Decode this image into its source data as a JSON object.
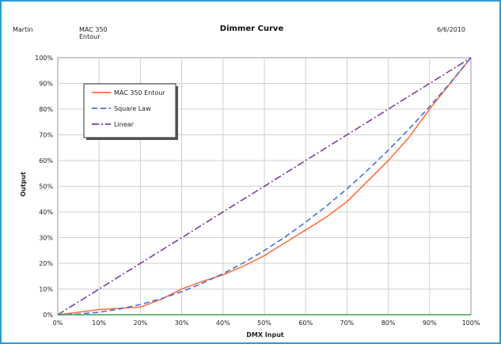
{
  "header": {
    "left": "Martin",
    "device_line1": "MAC 350",
    "device_line2": "Entour",
    "title": "Dimmer Curve",
    "date": "6/6/2010"
  },
  "chart_data": {
    "type": "line",
    "title": "Dimmer Curve",
    "xlabel": "DMX Input",
    "ylabel": "Output",
    "xlim": [
      0,
      100
    ],
    "ylim": [
      0,
      100
    ],
    "x_ticks": [
      "0%",
      "10%",
      "20%",
      "30%",
      "40%",
      "50%",
      "60%",
      "70%",
      "80%",
      "90%",
      "100%"
    ],
    "y_ticks": [
      "0%",
      "10%",
      "20%",
      "30%",
      "40%",
      "50%",
      "60%",
      "70%",
      "80%",
      "90%",
      "100%"
    ],
    "grid": true,
    "legend_position": "top-left",
    "series": [
      {
        "name": "MAC 350 Entour",
        "color": "#ff7043",
        "style": "solid",
        "x": [
          0,
          5,
          10,
          15,
          20,
          25,
          30,
          35,
          40,
          45,
          50,
          55,
          60,
          65,
          70,
          75,
          80,
          85,
          90,
          95,
          100
        ],
        "y": [
          0,
          1,
          2,
          2.5,
          3,
          6,
          10,
          13,
          15.5,
          19,
          23,
          28,
          33,
          38,
          44,
          52,
          60,
          69,
          80,
          90,
          100
        ]
      },
      {
        "name": "Square Law",
        "color": "#4a6fd9",
        "style": "dashed",
        "x": [
          0,
          5,
          10,
          15,
          20,
          25,
          30,
          35,
          40,
          45,
          50,
          55,
          60,
          65,
          70,
          75,
          80,
          85,
          90,
          95,
          100
        ],
        "y": [
          0,
          0.25,
          1,
          2.25,
          4,
          6.25,
          9,
          12.25,
          16,
          20.25,
          25,
          30.25,
          36,
          42.25,
          49,
          56.25,
          64,
          72.25,
          81,
          90.25,
          100
        ]
      },
      {
        "name": "Linear",
        "color": "#7b3fa0",
        "style": "dashdot",
        "x": [
          0,
          100
        ],
        "y": [
          0,
          100
        ]
      },
      {
        "name": "",
        "color": "#3aa655",
        "style": "solid",
        "x": [
          0,
          100
        ],
        "y": [
          0,
          0
        ]
      }
    ]
  }
}
